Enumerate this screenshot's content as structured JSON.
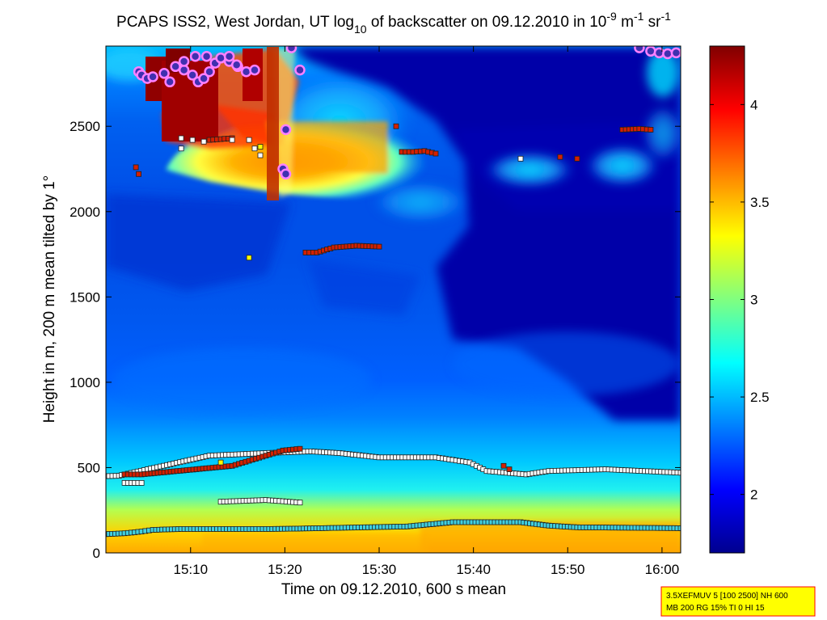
{
  "chart_data": {
    "type": "heatmap",
    "title": {
      "main": "PCAPS ISS2, West Jordan, UT log",
      "log_base": "10",
      "middle": " of backscatter on 09.12.2010 in 10",
      "exp1": "-9",
      "unit1": " m",
      "exp2": "-1",
      "unit2": " sr",
      "exp3": "-1"
    },
    "xlabel": "Time on 09.12.2010, 600 s mean",
    "ylabel": "Height in m, 200 m mean tilted by 1°",
    "xlim": [
      15.017,
      16.033
    ],
    "ylim": [
      0,
      2970
    ],
    "x_ticks": [
      {
        "value": 15.1667,
        "label": "15:10"
      },
      {
        "value": 15.3333,
        "label": "15:20"
      },
      {
        "value": 15.5,
        "label": "15:30"
      },
      {
        "value": 15.6667,
        "label": "15:40"
      },
      {
        "value": 15.8333,
        "label": "15:50"
      },
      {
        "value": 16.0,
        "label": "16:00"
      }
    ],
    "y_ticks": [
      {
        "value": 0,
        "label": "0"
      },
      {
        "value": 500,
        "label": "500"
      },
      {
        "value": 1000,
        "label": "1000"
      },
      {
        "value": 1500,
        "label": "1500"
      },
      {
        "value": 2000,
        "label": "2000"
      },
      {
        "value": 2500,
        "label": "2500"
      }
    ],
    "colorbar": {
      "range": [
        1.7,
        4.3
      ],
      "ticks": [
        {
          "value": 2,
          "label": "2"
        },
        {
          "value": 2.5,
          "label": "2.5"
        },
        {
          "value": 3,
          "label": "3"
        },
        {
          "value": 3.5,
          "label": "3.5"
        },
        {
          "value": 4,
          "label": "4"
        }
      ]
    },
    "colormap_stops": [
      "#00008f",
      "#0000ff",
      "#0080ff",
      "#00ffff",
      "#80ff80",
      "#ffff00",
      "#ff8000",
      "#ff0000",
      "#800000"
    ],
    "marker_colors": {
      "cyan": "#40d0e0",
      "white": "#ffffff",
      "red": "#d42000",
      "yellow": "#ffff00",
      "cloud": "#4030b0",
      "cloud_halo": "#ff80ff"
    },
    "layers": {
      "surface_layer": [
        [
          15.017,
          110
        ],
        [
          15.05,
          115
        ],
        [
          15.08,
          125
        ],
        [
          15.1,
          135
        ],
        [
          15.15,
          140
        ],
        [
          15.3,
          140
        ],
        [
          15.35,
          142
        ],
        [
          15.4,
          145
        ],
        [
          15.55,
          155
        ],
        [
          15.63,
          180
        ],
        [
          15.75,
          180
        ],
        [
          15.8,
          160
        ],
        [
          15.85,
          150
        ],
        [
          16.033,
          145
        ]
      ],
      "mixing_layer_white": [
        [
          15.017,
          450
        ],
        [
          15.04,
          452
        ],
        [
          15.05,
          460
        ],
        [
          15.2,
          570
        ],
        [
          15.3,
          585
        ],
        [
          15.38,
          595
        ],
        [
          15.43,
          585
        ],
        [
          15.5,
          560
        ],
        [
          15.6,
          560
        ],
        [
          15.66,
          530
        ],
        [
          15.69,
          480
        ],
        [
          15.76,
          460
        ],
        [
          15.8,
          480
        ],
        [
          15.9,
          490
        ],
        [
          16.033,
          470
        ]
      ],
      "residual_white_low": [
        [
          15.05,
          410
        ],
        [
          15.08,
          410
        ]
      ],
      "residual_white_mid": [
        [
          15.22,
          300
        ],
        [
          15.3,
          310
        ],
        [
          15.36,
          295
        ]
      ],
      "mixing_layer_red": [
        [
          15.05,
          460
        ],
        [
          15.08,
          460
        ],
        [
          15.24,
          510
        ],
        [
          15.27,
          540
        ],
        [
          15.3,
          570
        ],
        [
          15.33,
          600
        ],
        [
          15.36,
          610
        ]
      ],
      "red_left_upper": [
        [
          15.2,
          2420
        ],
        [
          15.22,
          2425
        ],
        [
          15.24,
          2430
        ]
      ],
      "red_mid": [
        [
          15.37,
          1760
        ],
        [
          15.39,
          1760
        ],
        [
          15.42,
          1790
        ],
        [
          15.46,
          1800
        ],
        [
          15.5,
          1795
        ]
      ],
      "red_right": [
        [
          15.54,
          2350
        ],
        [
          15.56,
          2350
        ],
        [
          15.58,
          2355
        ],
        [
          15.6,
          2340
        ]
      ],
      "red_right2": [
        [
          15.82,
          2320
        ],
        [
          15.85,
          2310
        ]
      ],
      "red_far_right": [
        [
          15.93,
          2480
        ],
        [
          15.96,
          2485
        ],
        [
          15.98,
          2480
        ]
      ],
      "red_single": [
        [
          15.07,
          2260
        ],
        [
          15.075,
          2220
        ],
        [
          15.53,
          2500
        ],
        [
          15.73,
          490
        ],
        [
          15.72,
          510
        ]
      ],
      "white_single": [
        [
          15.15,
          2430
        ],
        [
          15.17,
          2420
        ],
        [
          15.19,
          2410
        ],
        [
          15.24,
          2420
        ],
        [
          15.27,
          2420
        ],
        [
          15.15,
          2370
        ],
        [
          15.28,
          2370
        ],
        [
          15.29,
          2330
        ],
        [
          15.75,
          2310
        ]
      ],
      "yellow_single": [
        [
          15.27,
          1730
        ],
        [
          15.22,
          530
        ],
        [
          15.29,
          2380
        ]
      ],
      "clouds": [
        [
          15.075,
          2820
        ],
        [
          15.08,
          2800
        ],
        [
          15.09,
          2780
        ],
        [
          15.1,
          2790
        ],
        [
          15.12,
          2810
        ],
        [
          15.14,
          2850
        ],
        [
          15.155,
          2830
        ],
        [
          15.17,
          2800
        ],
        [
          15.18,
          2760
        ],
        [
          15.19,
          2780
        ],
        [
          15.2,
          2820
        ],
        [
          15.21,
          2870
        ],
        [
          15.22,
          2900
        ],
        [
          15.235,
          2880
        ],
        [
          15.25,
          2850
        ],
        [
          15.265,
          2820
        ],
        [
          15.28,
          2830
        ],
        [
          15.13,
          2760
        ],
        [
          15.155,
          2880
        ],
        [
          15.175,
          2910
        ],
        [
          15.195,
          2910
        ],
        [
          15.235,
          2910
        ],
        [
          15.248,
          2860
        ],
        [
          15.335,
          2480
        ],
        [
          15.33,
          2250
        ],
        [
          15.335,
          2220
        ],
        [
          15.345,
          2960
        ],
        [
          15.36,
          2830
        ],
        [
          15.96,
          2960
        ],
        [
          15.98,
          2940
        ],
        [
          15.995,
          2930
        ],
        [
          16.01,
          2925
        ],
        [
          16.025,
          2930
        ]
      ]
    },
    "info_box": {
      "line1": "3.5XEFMUV 5 [100 2500] NH 600",
      "line2": "MB 200 RG 15% TI 0 HI 15",
      "bg": "#ffff00",
      "border": "#ff0000"
    }
  }
}
